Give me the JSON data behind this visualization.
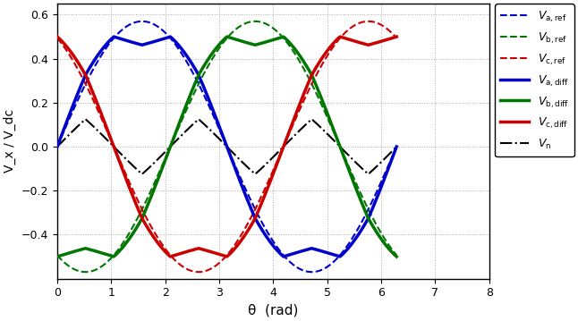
{
  "xlabel": "θ  (rad)",
  "ylabel": "V_x / V_dc",
  "xlim": [
    0,
    8
  ],
  "ylim": [
    -0.6,
    0.65
  ],
  "yticks": [
    -0.4,
    -0.2,
    0.0,
    0.2,
    0.4,
    0.6
  ],
  "xticks": [
    0,
    1,
    2,
    3,
    4,
    5,
    6,
    7,
    8
  ],
  "ref_amp": 0.5,
  "diff_amp": 0.5,
  "phase_b": 2.0943951023931953,
  "phase_c": 4.1887902047863905,
  "color_a": "#0000cc",
  "color_b": "#007700",
  "color_c": "#cc0000",
  "color_n": "#000000",
  "ref_lw": 1.5,
  "diff_lw": 2.5,
  "vn_lw": 1.5,
  "grid_color": "#aaaaaa",
  "legend_labels": [
    "V_{a,ref}",
    "V_{b,ref}",
    "V_{c,ref}",
    "V_{a,diff}",
    "V_{b,diff}",
    "V_{c,diff}",
    "V_{n}"
  ]
}
